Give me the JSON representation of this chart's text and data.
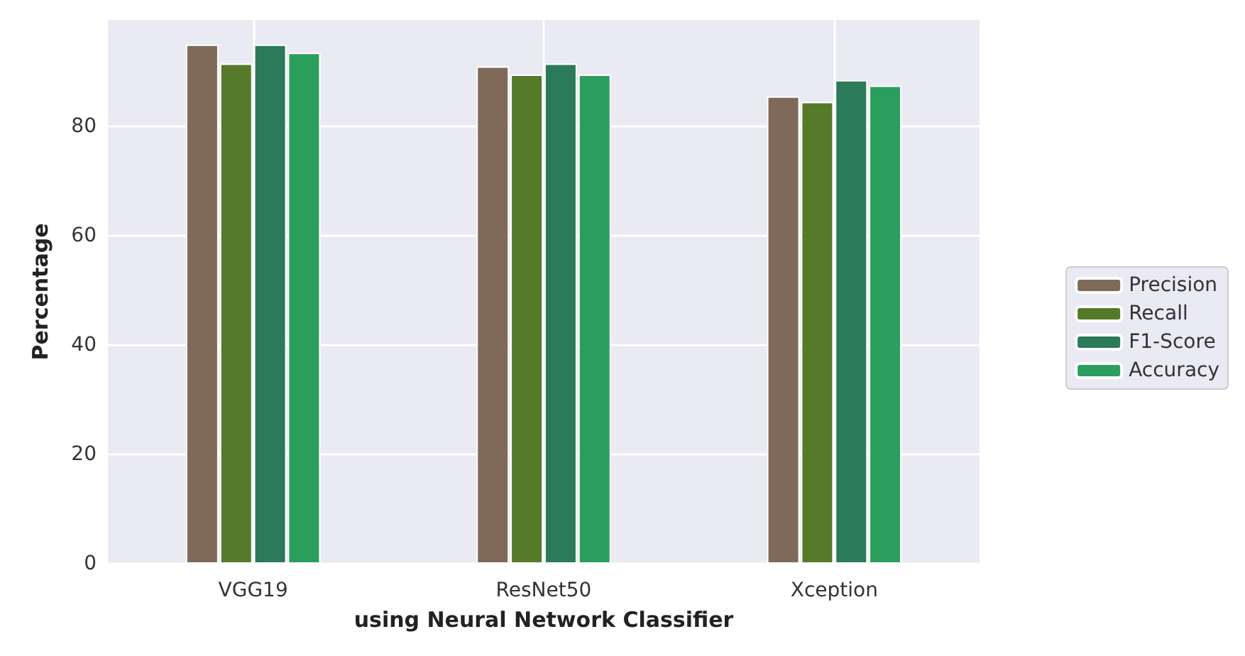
{
  "chart_data": {
    "type": "bar",
    "xlabel": "using Neural Network Classifier",
    "ylabel": "Percentage",
    "categories": [
      "VGG19",
      "ResNet50",
      "Xception"
    ],
    "series": [
      {
        "name": "Precision",
        "color": "#7f6a5a",
        "values": [
          95,
          91,
          85.5
        ]
      },
      {
        "name": "Recall",
        "color": "#557a2a",
        "values": [
          91.5,
          89.5,
          84.5
        ]
      },
      {
        "name": "F1-Score",
        "color": "#2b7a5a",
        "values": [
          95,
          91.5,
          88.5
        ]
      },
      {
        "name": "Accuracy",
        "color": "#2b9e5e",
        "values": [
          93.5,
          89.5,
          87.5
        ]
      }
    ],
    "ylim": [
      0,
      99.5
    ],
    "yticks": [
      0,
      20,
      40,
      60,
      80
    ],
    "grid": true,
    "legend": "right"
  }
}
